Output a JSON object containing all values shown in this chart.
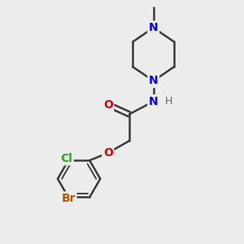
{
  "bg_color": "#ececec",
  "bond_color": "#3a3a3a",
  "bond_lw": 1.8,
  "atom_colors": {
    "N": "#0000ee",
    "O": "#dd0000",
    "Cl": "#22aa22",
    "Br": "#bb5500",
    "C": "#3a3a3a",
    "H": "#666666"
  },
  "font_size_atom": 10,
  "font_size_methyl": 8
}
